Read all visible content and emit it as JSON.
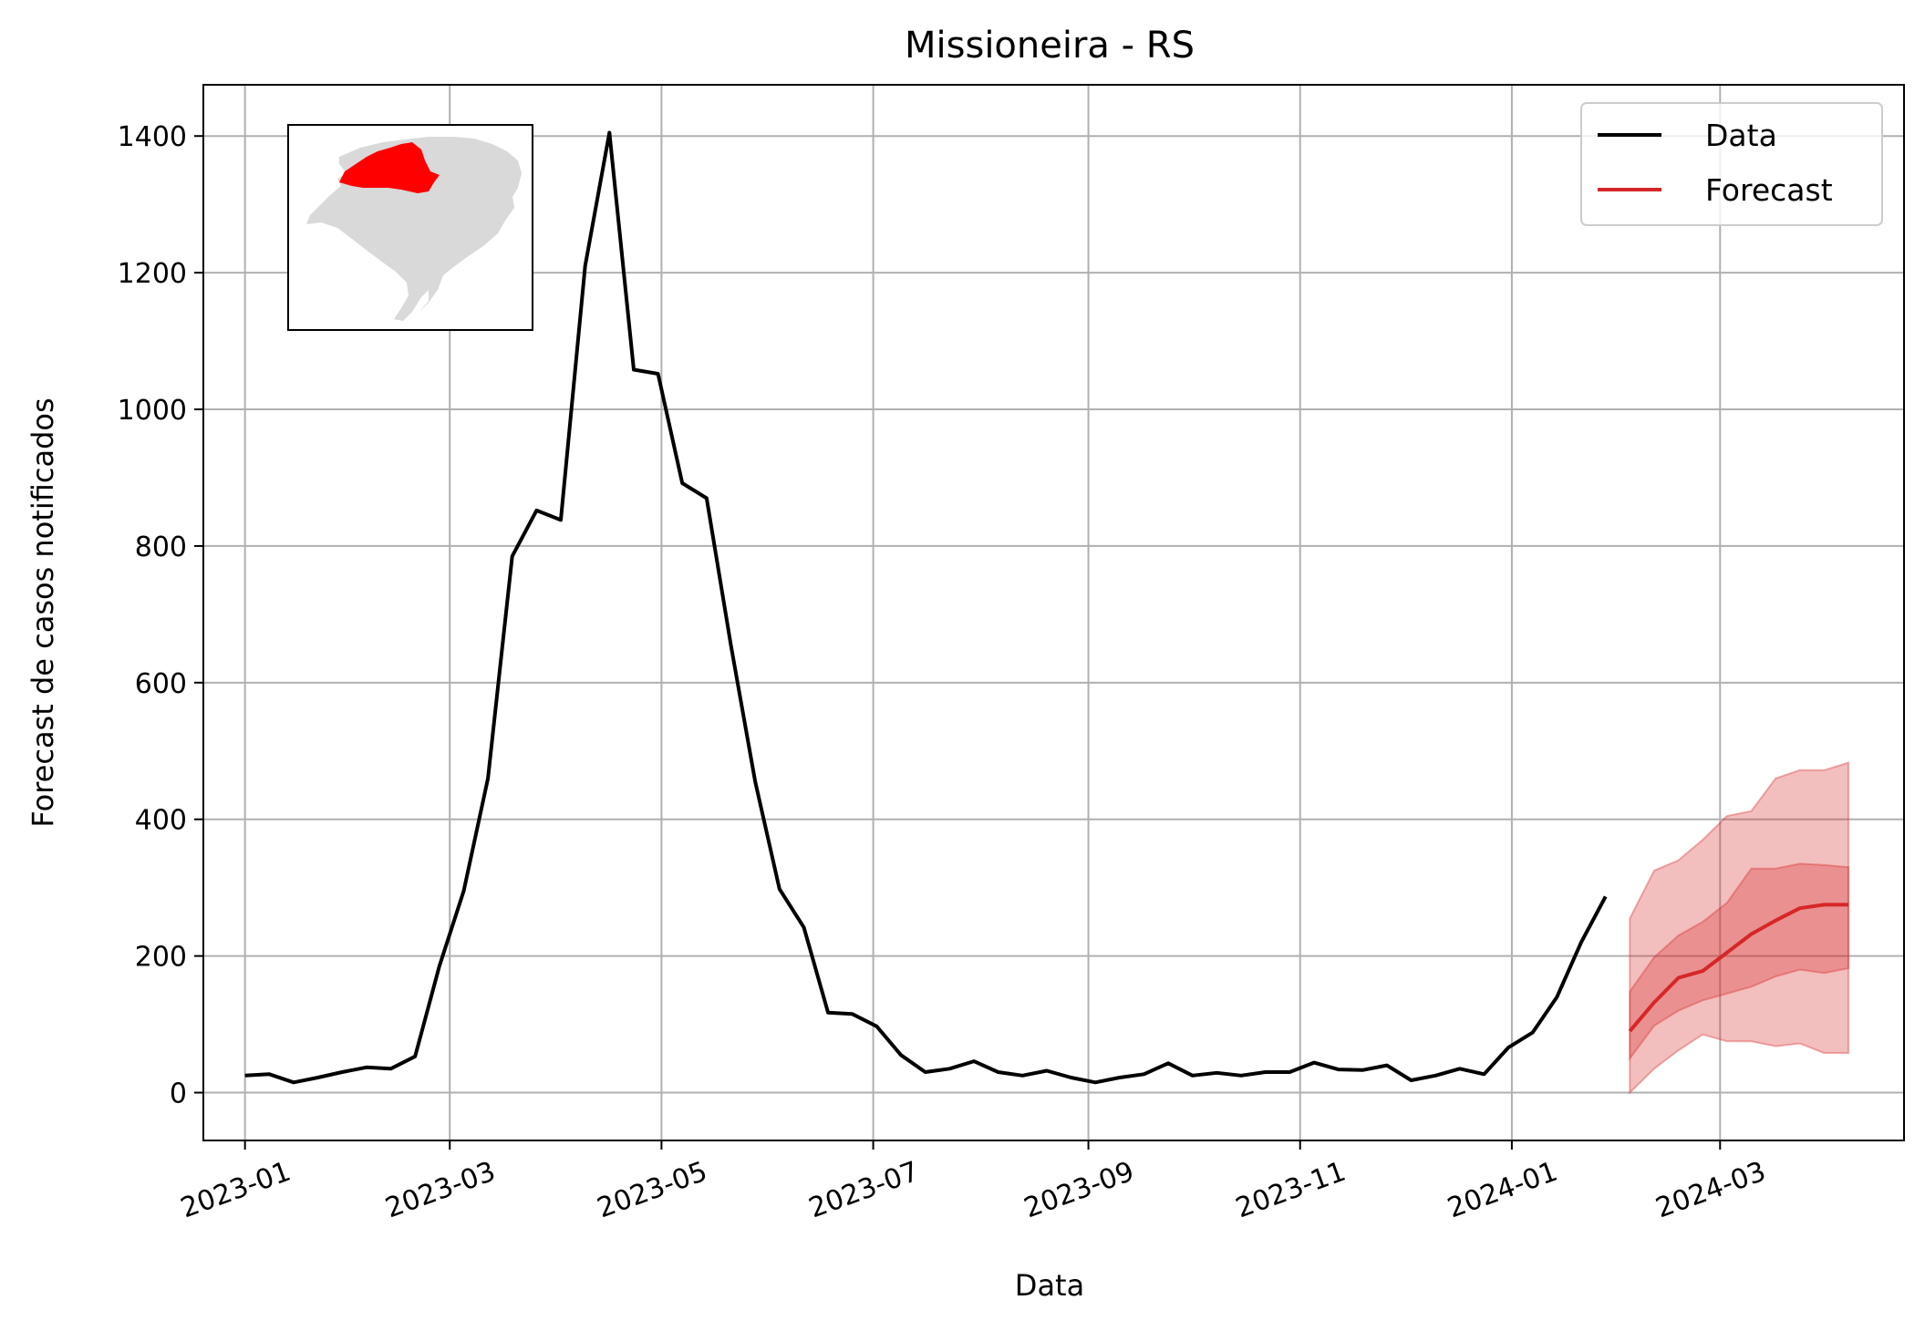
{
  "chart_data": {
    "type": "line",
    "title": "Missioneira - RS",
    "xlabel": "Data",
    "ylabel": "Forecast de casos notificados",
    "xlim": [
      "2022-12-20",
      "2024-04-23"
    ],
    "ylim": [
      -70,
      1475
    ],
    "grid": true,
    "legend_position": "top-right",
    "x_ticks": [
      "2023-01",
      "2023-03",
      "2023-05",
      "2023-07",
      "2023-09",
      "2023-11",
      "2024-01",
      "2024-03"
    ],
    "x_tick_dates": [
      "2023-01-01",
      "2023-03-01",
      "2023-05-01",
      "2023-07-01",
      "2023-09-01",
      "2023-11-01",
      "2024-01-01",
      "2024-03-01"
    ],
    "y_ticks": [
      0,
      200,
      400,
      600,
      800,
      1000,
      1200,
      1400
    ],
    "series": [
      {
        "name": "Data",
        "color": "#000000",
        "x": [
          "2023-01-01",
          "2023-01-08",
          "2023-01-15",
          "2023-01-22",
          "2023-01-29",
          "2023-02-05",
          "2023-02-12",
          "2023-02-19",
          "2023-02-26",
          "2023-03-05",
          "2023-03-12",
          "2023-03-19",
          "2023-03-26",
          "2023-04-02",
          "2023-04-09",
          "2023-04-16",
          "2023-04-23",
          "2023-04-30",
          "2023-05-07",
          "2023-05-14",
          "2023-05-21",
          "2023-05-28",
          "2023-06-04",
          "2023-06-11",
          "2023-06-18",
          "2023-06-25",
          "2023-07-02",
          "2023-07-09",
          "2023-07-16",
          "2023-07-23",
          "2023-07-30",
          "2023-08-06",
          "2023-08-13",
          "2023-08-20",
          "2023-08-27",
          "2023-09-03",
          "2023-09-10",
          "2023-09-17",
          "2023-09-24",
          "2023-10-01",
          "2023-10-08",
          "2023-10-15",
          "2023-10-22",
          "2023-10-29",
          "2023-11-05",
          "2023-11-12",
          "2023-11-19",
          "2023-11-26",
          "2023-12-03",
          "2023-12-10",
          "2023-12-17",
          "2023-12-24",
          "2023-12-31",
          "2024-01-07",
          "2024-01-14",
          "2024-01-21",
          "2024-01-28"
        ],
        "values": [
          25,
          27,
          15,
          22,
          30,
          37,
          35,
          53,
          185,
          295,
          460,
          785,
          852,
          838,
          1210,
          1405,
          1058,
          1052,
          892,
          870,
          655,
          455,
          298,
          242,
          117,
          115,
          97,
          55,
          30,
          35,
          46,
          30,
          25,
          32,
          22,
          15,
          22,
          27,
          43,
          25,
          29,
          25,
          30,
          30,
          44,
          34,
          33,
          40,
          18,
          25,
          35,
          27,
          66,
          88,
          140,
          220,
          287
        ]
      },
      {
        "name": "Forecast",
        "color": "#d62728",
        "x": [
          "2024-02-04",
          "2024-02-11",
          "2024-02-18",
          "2024-02-25",
          "2024-03-03",
          "2024-03-10",
          "2024-03-17",
          "2024-03-24",
          "2024-03-31",
          "2024-04-07"
        ],
        "values": [
          90,
          132,
          168,
          178,
          205,
          232,
          252,
          270,
          275,
          275
        ],
        "band_50": {
          "lower": [
            50,
            98,
            120,
            135,
            145,
            155,
            170,
            180,
            175,
            182
          ],
          "upper": [
            148,
            198,
            230,
            250,
            278,
            328,
            328,
            335,
            333,
            330
          ]
        },
        "band_90": {
          "lower": [
            0,
            35,
            62,
            85,
            75,
            75,
            68,
            72,
            58,
            58
          ],
          "upper": [
            255,
            325,
            340,
            370,
            405,
            412,
            460,
            472,
            472,
            483
          ]
        }
      }
    ],
    "legend": [
      "Data",
      "Forecast"
    ],
    "inset": {
      "description": "map",
      "highlight_color": "#ff0000",
      "base_color": "#d9d9d9"
    }
  }
}
